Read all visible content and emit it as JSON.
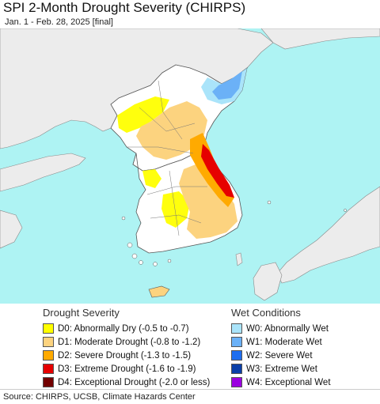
{
  "title": "SPI 2-Month Drought Severity (CHIRPS)",
  "subtitle": "Jan. 1 - Feb. 28, 2025 [final]",
  "map_colors": {
    "sea": "#aef3f3",
    "land": "#ffffff",
    "neighbor_land": "#ececec",
    "border": "#555555"
  },
  "drought_legend": {
    "heading": "Drought Severity",
    "items": [
      {
        "label": "D0: Abnormally Dry (-0.5 to -0.7)",
        "color": "#ffff00"
      },
      {
        "label": "D1: Moderate Drought (-0.8 to -1.2)",
        "color": "#fcd37f"
      },
      {
        "label": "D2: Severe Drought (-1.3 to -1.5)",
        "color": "#ffaa00"
      },
      {
        "label": "D3: Extreme Drought (-1.6 to -1.9)",
        "color": "#e60000"
      },
      {
        "label": "D4: Exceptional Drought (-2.0 or less)",
        "color": "#730000"
      }
    ]
  },
  "wet_legend": {
    "heading": "Wet Conditions",
    "items": [
      {
        "label": "W0: Abnormally Wet",
        "color": "#aae4fa"
      },
      {
        "label": "W1: Moderate Wet",
        "color": "#6bb1f7"
      },
      {
        "label": "W2: Severe Wet",
        "color": "#1e6ef0"
      },
      {
        "label": "W3: Extreme Wet",
        "color": "#0a3fa8"
      },
      {
        "label": "W4: Exceptional Wet",
        "color": "#9b00e0"
      }
    ]
  },
  "source": "Source: CHIRPS, UCSB, Climate Hazards Center"
}
